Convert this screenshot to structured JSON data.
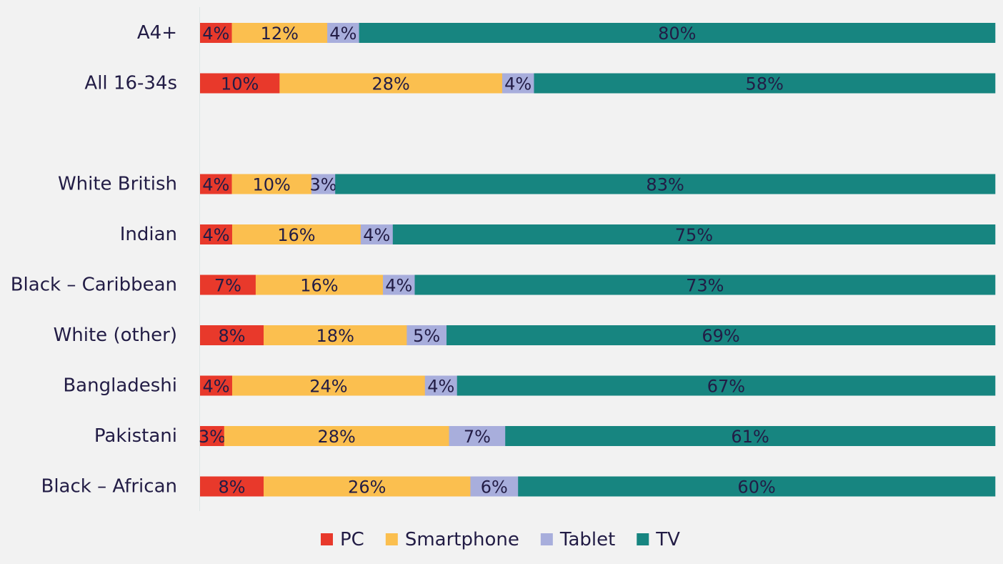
{
  "chart_data": {
    "type": "bar",
    "orientation": "horizontal",
    "stacked": "100%",
    "title": "",
    "xlabel": "",
    "ylabel": "",
    "grid": false,
    "legend_position": "bottom",
    "categories": [
      "A4+",
      "All 16-34s",
      "White British",
      "Indian",
      "Black – Caribbean",
      "White (other)",
      "Bangladeshi",
      "Pakistani",
      "Black – African"
    ],
    "series": [
      {
        "name": "PC",
        "color": "#e8392b",
        "values": [
          4,
          10,
          4,
          4,
          7,
          8,
          4,
          3,
          8
        ]
      },
      {
        "name": "Smartphone",
        "color": "#fbbf4f",
        "values": [
          12,
          28,
          10,
          16,
          16,
          18,
          24,
          28,
          26
        ]
      },
      {
        "name": "Tablet",
        "color": "#a8aedc",
        "values": [
          4,
          4,
          3,
          4,
          4,
          5,
          4,
          7,
          6
        ]
      },
      {
        "name": "TV",
        "color": "#178580",
        "values": [
          80,
          58,
          83,
          75,
          73,
          69,
          67,
          61,
          60
        ]
      }
    ],
    "value_suffix": "%"
  },
  "colors": {
    "background": "#f2f2f2",
    "text": "#221c45"
  }
}
